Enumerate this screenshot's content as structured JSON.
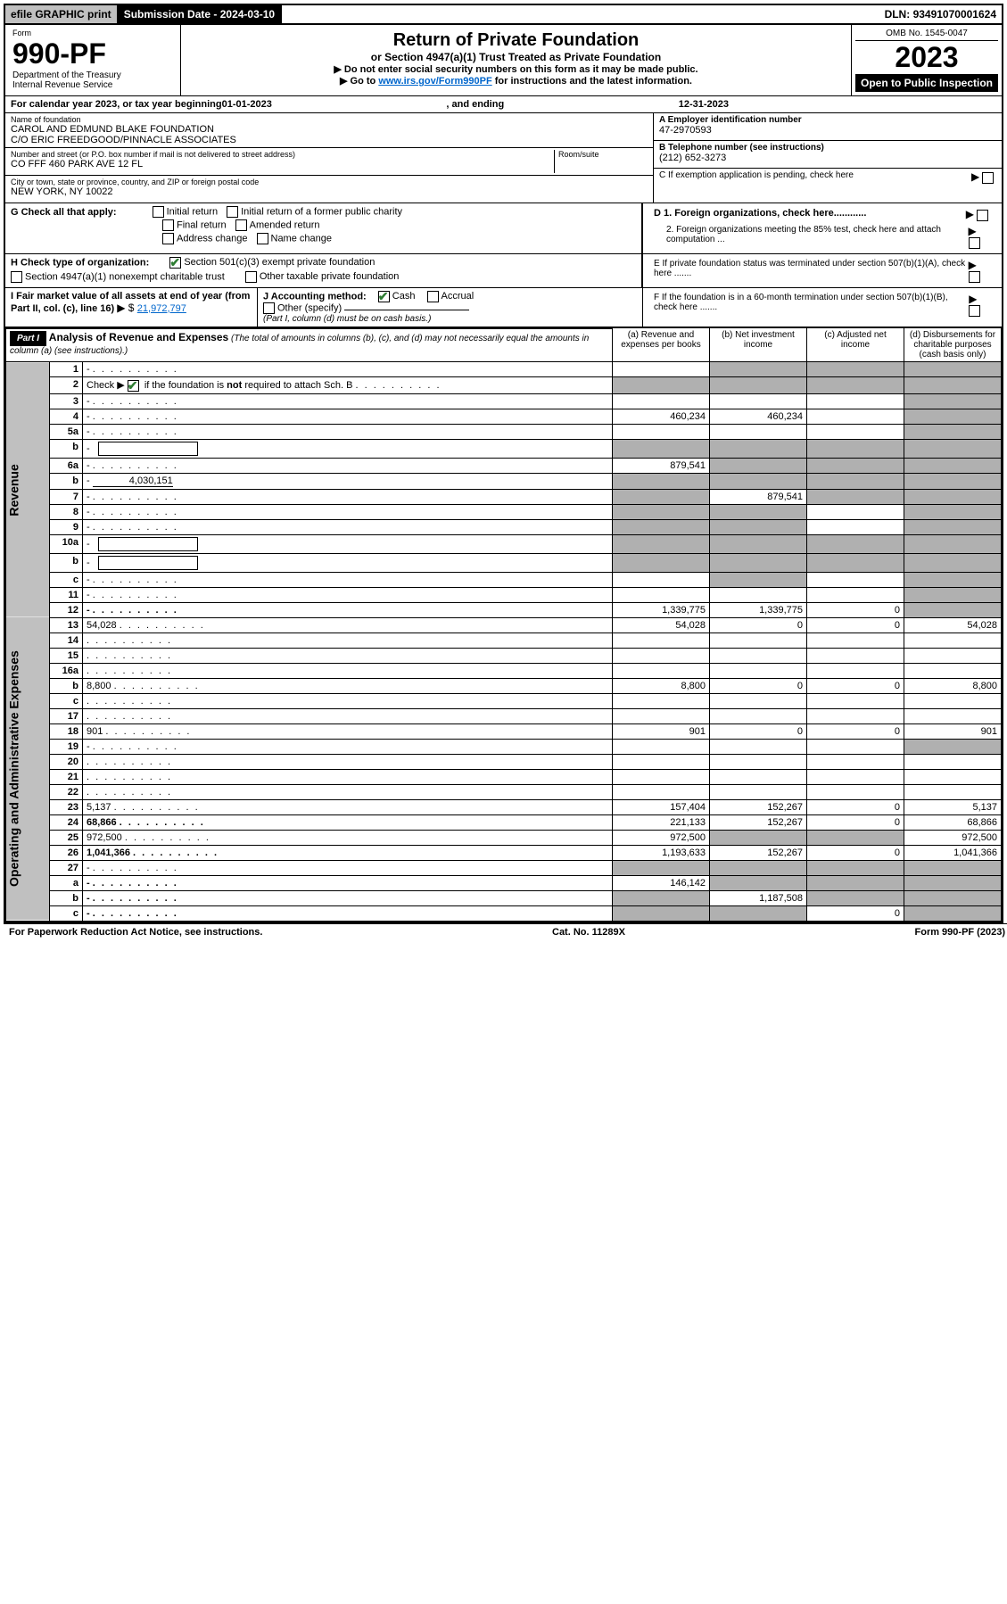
{
  "topbar": {
    "efile": "efile GRAPHIC print",
    "subdate_label": "Submission Date - ",
    "subdate": "2024-03-10",
    "dln_label": "DLN: ",
    "dln": "93491070001624"
  },
  "header": {
    "form_label": "Form",
    "form_no": "990-PF",
    "dept": "Department of the Treasury",
    "irs": "Internal Revenue Service",
    "title": "Return of Private Foundation",
    "subtitle": "or Section 4947(a)(1) Trust Treated as Private Foundation",
    "note1": "▶ Do not enter social security numbers on this form as it may be made public.",
    "note2a": "▶ Go to ",
    "note2_link": "www.irs.gov/Form990PF",
    "note2b": " for instructions and the latest information.",
    "omb": "OMB No. 1545-0047",
    "year": "2023",
    "open": "Open to Public Inspection"
  },
  "calendar": {
    "prefix": "For calendar year 2023, or tax year beginning ",
    "begin": "01-01-2023",
    "mid": ", and ending ",
    "end": "12-31-2023"
  },
  "entity": {
    "name_lbl": "Name of foundation",
    "name1": "CAROL AND EDMUND BLAKE FOUNDATION",
    "name2": "C/O ERIC FREEDGOOD/PINNACLE ASSOCIATES",
    "addr_lbl": "Number and street (or P.O. box number if mail is not delivered to street address)",
    "room_lbl": "Room/suite",
    "addr": "CO FFF 460 PARK AVE 12 FL",
    "city_lbl": "City or town, state or province, country, and ZIP or foreign postal code",
    "city": "NEW YORK, NY  10022",
    "ein_lbl": "A Employer identification number",
    "ein": "47-2970593",
    "phone_lbl": "B Telephone number (see instructions)",
    "phone": "(212) 652-3273",
    "c_lbl": "C If exemption application is pending, check here",
    "d1": "D 1. Foreign organizations, check here............",
    "d2": "2. Foreign organizations meeting the 85% test, check here and attach computation ...",
    "e_lbl": "E  If private foundation status was terminated under section 507(b)(1)(A), check here .......",
    "f_lbl": "F  If the foundation is in a 60-month termination under section 507(b)(1)(B), check here .......",
    "g_lbl": "G Check all that apply:",
    "g_opts": [
      "Initial return",
      "Initial return of a former public charity",
      "Final return",
      "Amended return",
      "Address change",
      "Name change"
    ],
    "h_lbl": "H Check type of organization:",
    "h1": "Section 501(c)(3) exempt private foundation",
    "h2": "Section 4947(a)(1) nonexempt charitable trust",
    "h3": "Other taxable private foundation",
    "i_lbl": "I Fair market value of all assets at end of year (from Part II, col. (c), line 16)",
    "i_val": "21,972,797",
    "j_lbl": "J Accounting method:",
    "j_cash": "Cash",
    "j_accrual": "Accrual",
    "j_other": "Other (specify)",
    "j_note": "(Part I, column (d) must be on cash basis.)"
  },
  "part1": {
    "label": "Part I",
    "title": "Analysis of Revenue and Expenses",
    "note": " (The total of amounts in columns (b), (c), and (d) may not necessarily equal the amounts in column (a) (see instructions).)",
    "col_a": "(a)   Revenue and expenses per books",
    "col_b": "(b)   Net investment income",
    "col_c": "(c)   Adjusted net income",
    "col_d": "(d)   Disbursements for charitable purposes (cash basis only)"
  },
  "side_labels": {
    "rev": "Revenue",
    "exp": "Operating and Administrative Expenses"
  },
  "rows": [
    {
      "n": "1",
      "d": "-",
      "a": "",
      "b": "-",
      "c": "-"
    },
    {
      "n": "2",
      "d": "-",
      "a": "-",
      "b": "-",
      "c": "-",
      "check": true
    },
    {
      "n": "3",
      "d": "-",
      "a": "",
      "b": "",
      "c": ""
    },
    {
      "n": "4",
      "d": "-",
      "a": "460,234",
      "b": "460,234",
      "c": ""
    },
    {
      "n": "5a",
      "d": "-",
      "a": "",
      "b": "",
      "c": ""
    },
    {
      "n": "b",
      "d": "-",
      "a": "-",
      "b": "-",
      "c": "-",
      "inline": true
    },
    {
      "n": "6a",
      "d": "-",
      "a": "879,541",
      "b": "-",
      "c": "-"
    },
    {
      "n": "b",
      "d": "-",
      "a": "-",
      "b": "-",
      "c": "-",
      "inline_val": "4,030,151"
    },
    {
      "n": "7",
      "d": "-",
      "a": "-",
      "b": "879,541",
      "c": "-"
    },
    {
      "n": "8",
      "d": "-",
      "a": "-",
      "b": "-",
      "c": ""
    },
    {
      "n": "9",
      "d": "-",
      "a": "-",
      "b": "-",
      "c": ""
    },
    {
      "n": "10a",
      "d": "-",
      "a": "-",
      "b": "-",
      "c": "-",
      "inline": true
    },
    {
      "n": "b",
      "d": "-",
      "a": "-",
      "b": "-",
      "c": "-",
      "inline": true
    },
    {
      "n": "c",
      "d": "-",
      "a": "",
      "b": "-",
      "c": ""
    },
    {
      "n": "11",
      "d": "-",
      "a": "",
      "b": "",
      "c": ""
    },
    {
      "n": "12",
      "d": "-",
      "a": "1,339,775",
      "b": "1,339,775",
      "c": "0",
      "bold": true
    },
    {
      "n": "13",
      "d": "54,028",
      "a": "54,028",
      "b": "0",
      "c": "0"
    },
    {
      "n": "14",
      "d": "",
      "a": "",
      "b": "",
      "c": ""
    },
    {
      "n": "15",
      "d": "",
      "a": "",
      "b": "",
      "c": ""
    },
    {
      "n": "16a",
      "d": "",
      "a": "",
      "b": "",
      "c": ""
    },
    {
      "n": "b",
      "d": "8,800",
      "a": "8,800",
      "b": "0",
      "c": "0"
    },
    {
      "n": "c",
      "d": "",
      "a": "",
      "b": "",
      "c": ""
    },
    {
      "n": "17",
      "d": "",
      "a": "",
      "b": "",
      "c": ""
    },
    {
      "n": "18",
      "d": "901",
      "a": "901",
      "b": "0",
      "c": "0"
    },
    {
      "n": "19",
      "d": "-",
      "a": "",
      "b": "",
      "c": ""
    },
    {
      "n": "20",
      "d": "",
      "a": "",
      "b": "",
      "c": ""
    },
    {
      "n": "21",
      "d": "",
      "a": "",
      "b": "",
      "c": ""
    },
    {
      "n": "22",
      "d": "",
      "a": "",
      "b": "",
      "c": ""
    },
    {
      "n": "23",
      "d": "5,137",
      "a": "157,404",
      "b": "152,267",
      "c": "0"
    },
    {
      "n": "24",
      "d": "68,866",
      "a": "221,133",
      "b": "152,267",
      "c": "0",
      "bold": true
    },
    {
      "n": "25",
      "d": "972,500",
      "a": "972,500",
      "b": "-",
      "c": "-"
    },
    {
      "n": "26",
      "d": "1,041,366",
      "a": "1,193,633",
      "b": "152,267",
      "c": "0",
      "bold": true
    },
    {
      "n": "27",
      "d": "-",
      "a": "-",
      "b": "-",
      "c": "-"
    },
    {
      "n": "a",
      "d": "-",
      "a": "146,142",
      "b": "-",
      "c": "-",
      "bold": true
    },
    {
      "n": "b",
      "d": "-",
      "a": "-",
      "b": "1,187,508",
      "c": "-",
      "bold": true
    },
    {
      "n": "c",
      "d": "-",
      "a": "-",
      "b": "-",
      "c": "0",
      "bold": true
    }
  ],
  "footer": {
    "left": "For Paperwork Reduction Act Notice, see instructions.",
    "mid": "Cat. No. 11289X",
    "right": "Form 990-PF (2023)"
  },
  "colors": {
    "gray": "#b0b0b0",
    "link": "#0066cc",
    "check": "#2e7d32"
  }
}
